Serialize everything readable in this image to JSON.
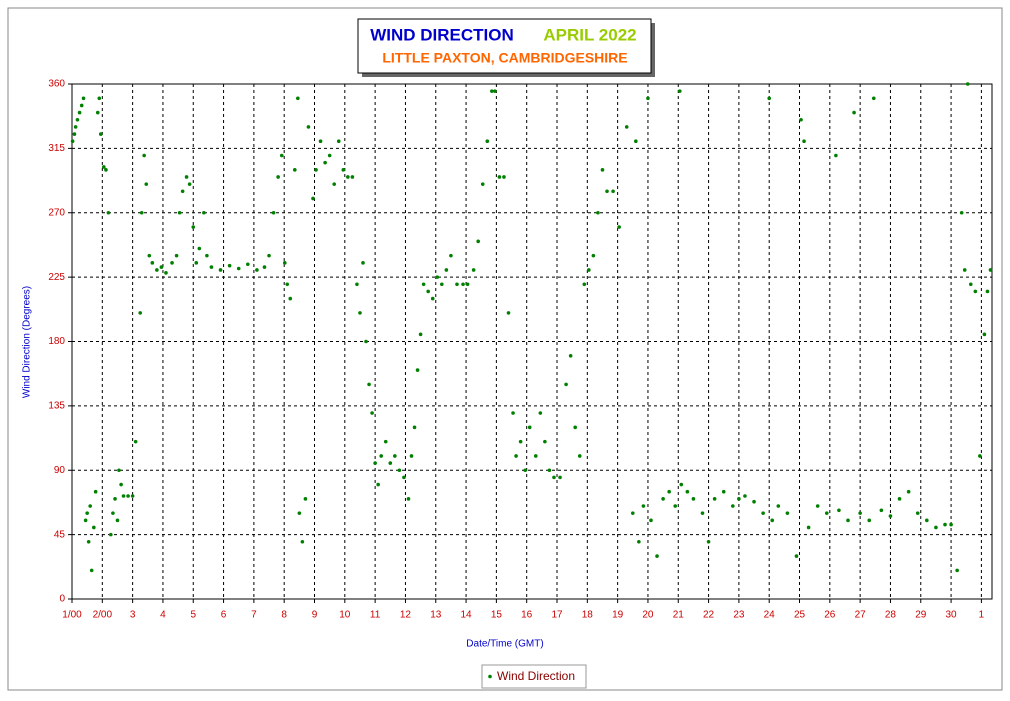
{
  "chart_data": {
    "type": "scatter",
    "title": "WIND DIRECTION",
    "title_date": "APRIL 2022",
    "subtitle": "LITTLE PAXTON, CAMBRIDGESHIRE",
    "x_label": "Date/Time (GMT)",
    "y_label": "Wind Direction (Degrees)",
    "xlim": [
      1,
      31.35
    ],
    "ylim": [
      0,
      360
    ],
    "xticks": [
      {
        "value": 1,
        "label": "1/00"
      },
      {
        "value": 2,
        "label": "2/00"
      },
      3,
      4,
      5,
      6,
      7,
      8,
      9,
      10,
      11,
      12,
      13,
      14,
      15,
      16,
      17,
      18,
      19,
      20,
      21,
      22,
      23,
      24,
      25,
      26,
      27,
      28,
      29,
      30,
      {
        "value": 31,
        "label": "1"
      }
    ],
    "yticks": [
      0,
      45,
      90,
      135,
      180,
      225,
      270,
      315,
      360
    ],
    "grid": true,
    "series": [
      {
        "name": "Wind Direction",
        "color": "#008000",
        "x": [
          1.02,
          1.08,
          1.12,
          1.18,
          1.25,
          1.32,
          1.38,
          1.45,
          1.5,
          1.55,
          1.6,
          1.65,
          1.72,
          1.78,
          1.85,
          1.9,
          1.95,
          2.05,
          2.12,
          2.2,
          2.28,
          2.35,
          2.42,
          2.5,
          2.55,
          2.62,
          2.7,
          2.85,
          3.0,
          3.1,
          3.25,
          3.3,
          3.38,
          3.45,
          3.55,
          3.65,
          3.8,
          3.95,
          4.1,
          4.3,
          4.45,
          4.55,
          4.65,
          4.78,
          4.88,
          5.0,
          5.1,
          5.2,
          5.35,
          5.45,
          5.6,
          5.9,
          6.2,
          6.5,
          6.8,
          7.1,
          7.35,
          7.5,
          7.65,
          7.8,
          7.92,
          8.02,
          8.1,
          8.2,
          8.35,
          8.45,
          8.5,
          8.6,
          8.7,
          8.8,
          8.95,
          9.05,
          9.2,
          9.35,
          9.5,
          9.65,
          9.8,
          9.95,
          10.1,
          10.25,
          10.4,
          10.5,
          10.6,
          10.7,
          10.8,
          10.9,
          11.0,
          11.1,
          11.2,
          11.35,
          11.5,
          11.65,
          11.8,
          11.95,
          12.1,
          12.2,
          12.3,
          12.4,
          12.5,
          12.6,
          12.75,
          12.9,
          13.05,
          13.2,
          13.35,
          13.5,
          13.7,
          13.9,
          14.05,
          14.25,
          14.4,
          14.55,
          14.7,
          14.85,
          14.95,
          15.1,
          15.25,
          15.4,
          15.55,
          15.65,
          15.8,
          15.95,
          16.1,
          16.3,
          16.45,
          16.6,
          16.75,
          16.9,
          17.1,
          17.3,
          17.45,
          17.6,
          17.75,
          17.9,
          18.05,
          18.2,
          18.35,
          18.5,
          18.65,
          18.85,
          19.05,
          19.3,
          19.5,
          19.6,
          19.7,
          19.85,
          20.0,
          20.1,
          20.3,
          20.5,
          20.7,
          20.9,
          21.05,
          21.1,
          21.3,
          21.5,
          21.8,
          22.0,
          22.2,
          22.5,
          22.8,
          23.0,
          23.2,
          23.5,
          23.8,
          24.0,
          24.1,
          24.3,
          24.6,
          24.9,
          25.05,
          25.15,
          25.3,
          25.6,
          25.9,
          26.2,
          26.3,
          26.6,
          26.8,
          27.0,
          27.3,
          27.45,
          27.7,
          28.0,
          28.3,
          28.6,
          28.9,
          29.2,
          29.5,
          29.8,
          30.0,
          30.2,
          30.35,
          30.45,
          30.55,
          30.65,
          30.8,
          30.95,
          31.1,
          31.2,
          31.3
        ],
        "values": [
          320,
          325,
          330,
          335,
          340,
          345,
          350,
          55,
          60,
          40,
          65,
          20,
          50,
          75,
          340,
          350,
          325,
          302,
          300,
          270,
          45,
          60,
          70,
          55,
          90,
          80,
          72,
          72,
          72,
          110,
          200,
          270,
          310,
          290,
          240,
          235,
          230,
          232,
          228,
          235,
          240,
          270,
          285,
          295,
          290,
          260,
          235,
          245,
          270,
          240,
          232,
          230,
          233,
          231,
          234,
          230,
          232,
          240,
          270,
          295,
          310,
          235,
          220,
          210,
          300,
          350,
          60,
          40,
          70,
          330,
          280,
          300,
          320,
          305,
          310,
          290,
          320,
          300,
          295,
          295,
          220,
          200,
          235,
          180,
          150,
          130,
          95,
          80,
          100,
          110,
          95,
          100,
          90,
          85,
          70,
          100,
          120,
          160,
          185,
          220,
          215,
          210,
          225,
          220,
          230,
          240,
          220,
          220,
          220,
          230,
          250,
          290,
          320,
          355,
          355,
          295,
          295,
          200,
          130,
          100,
          110,
          90,
          120,
          100,
          130,
          110,
          90,
          85,
          85,
          150,
          170,
          120,
          100,
          220,
          230,
          240,
          270,
          300,
          285,
          285,
          260,
          330,
          60,
          320,
          40,
          65,
          350,
          55,
          30,
          70,
          75,
          65,
          355,
          80,
          75,
          70,
          60,
          40,
          70,
          75,
          65,
          70,
          72,
          68,
          60,
          350,
          55,
          65,
          60,
          30,
          335,
          320,
          50,
          65,
          60,
          310,
          62,
          55,
          340,
          60,
          55,
          350,
          62,
          58,
          70,
          75,
          60,
          55,
          50,
          52,
          52,
          20,
          270,
          230,
          360,
          220,
          215,
          100,
          185,
          215,
          230
        ]
      }
    ]
  }
}
